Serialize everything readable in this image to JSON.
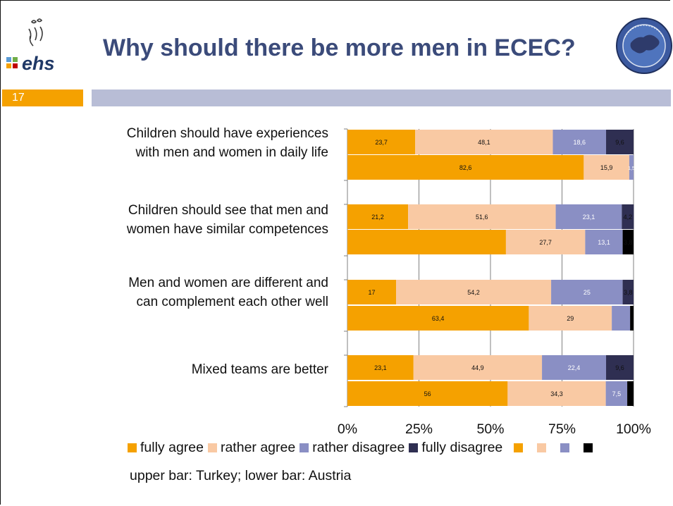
{
  "slide": {
    "title": "Why should there be more men in ECEC?",
    "slide_number": "17",
    "logo_text": "ehs",
    "note": "upper bar: Turkey; lower bar: Austria"
  },
  "chart_data": {
    "type": "bar",
    "orientation": "horizontal",
    "stacked": "percent",
    "x_ticks": [
      "0%",
      "25%",
      "50%",
      "75%",
      "100%"
    ],
    "xlim": [
      0,
      100
    ],
    "grid": true,
    "categories": [
      "Children should have experiences with men and women in daily life",
      "Children should see that men and women have similar competences",
      "Men and women are different and can complement each other well",
      "Mixed teams are better"
    ],
    "label_lines": [
      [
        "Children should have experiences",
        "with men and women in daily life"
      ],
      [
        "Children should see that men and",
        "women have similar competences"
      ],
      [
        "Men and women are different and",
        "can complement each other well"
      ],
      [
        "Mixed teams are better"
      ]
    ],
    "series": [
      {
        "name": "fully agree",
        "color": "#f5a100"
      },
      {
        "name": "rather agree",
        "color": "#f9c9a3"
      },
      {
        "name": "rather disagree",
        "color": "#8a8fc4"
      },
      {
        "name": "fully disagree",
        "color": "#2f2f52"
      }
    ],
    "bars": [
      {
        "group": 0,
        "country": "Turkey",
        "values": [
          23.7,
          48.1,
          18.6,
          9.6
        ],
        "labels": [
          "23,7",
          "48,1",
          "18,6",
          "9,6"
        ]
      },
      {
        "group": 0,
        "country": "Austria",
        "values": [
          82.6,
          15.9,
          1.5,
          0
        ],
        "labels": [
          "82,6",
          "15,9",
          "1,5",
          ""
        ]
      },
      {
        "group": 1,
        "country": "Turkey",
        "values": [
          21.2,
          51.6,
          23.1,
          4.2
        ],
        "labels": [
          "21,2",
          "51,6",
          "23,1",
          "4,2"
        ]
      },
      {
        "group": 1,
        "country": "Austria",
        "values": [
          55.4,
          27.7,
          13.1,
          3.8
        ],
        "labels": [
          "",
          "27,7",
          "13,1",
          "3,8"
        ]
      },
      {
        "group": 2,
        "country": "Turkey",
        "values": [
          17,
          54.2,
          25,
          3.8
        ],
        "labels": [
          "17",
          "54,2",
          "25",
          "3,8"
        ]
      },
      {
        "group": 2,
        "country": "Austria",
        "values": [
          63.4,
          29,
          6.4,
          1.2
        ],
        "labels": [
          "63,4",
          "29",
          "",
          ""
        ]
      },
      {
        "group": 3,
        "country": "Turkey",
        "values": [
          23.1,
          44.9,
          22.4,
          9.6
        ],
        "labels": [
          "23,1",
          "44,9",
          "22,4",
          "9,6"
        ]
      },
      {
        "group": 3,
        "country": "Austria",
        "values": [
          56,
          34.3,
          7.5,
          2.2
        ],
        "labels": [
          "56",
          "34,3",
          "7,5",
          ""
        ]
      }
    ],
    "legend_colors_repeat": [
      "#f5a100",
      "#f9c9a3",
      "#8a8fc4",
      "#000000"
    ]
  }
}
